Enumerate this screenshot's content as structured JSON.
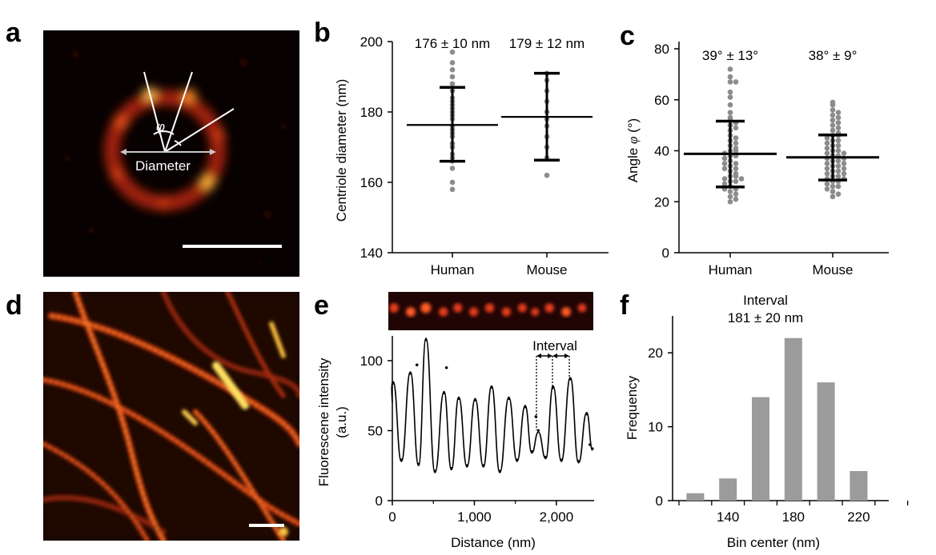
{
  "panels": {
    "a": {
      "letter": "a",
      "phi_label": "φ",
      "diameter_label": "Diameter"
    },
    "b": {
      "letter": "b",
      "stat_human": "176 ± 10 nm",
      "stat_mouse": "179 ± 12 nm",
      "ylabel": "Centriole diameter (nm)",
      "yticks": [
        "140",
        "160",
        "180",
        "200"
      ],
      "categories": [
        "Human",
        "Mouse"
      ]
    },
    "c": {
      "letter": "c",
      "stat_human": "39° ± 13°",
      "stat_mouse": "38° ± 9°",
      "ylabel_prefix": "Angle ",
      "ylabel_symbol": "φ",
      "ylabel_suffix": " (°)",
      "yticks": [
        "0",
        "20",
        "40",
        "60",
        "80"
      ],
      "categories": [
        "Human",
        "Mouse"
      ]
    },
    "d": {
      "letter": "d"
    },
    "e": {
      "letter": "e",
      "ylabel_line1": "Fluorescene intensity",
      "ylabel_line2": "(a.u.)",
      "xlabel": "Distance (nm)",
      "xticks": [
        "0",
        "1,000",
        "2,000"
      ],
      "yticks": [
        "0",
        "50",
        "100"
      ],
      "interval_label": "Interval"
    },
    "f": {
      "letter": "f",
      "title_line1": "Interval",
      "title_line2": "181 ± 20 nm",
      "ylabel": "Frequency",
      "xlabel": "Bin center (nm)",
      "xticks": [
        "140",
        "180",
        "220"
      ],
      "yticks": [
        "0",
        "10",
        "20"
      ]
    }
  },
  "chart_data": [
    {
      "panel": "b",
      "type": "scatter",
      "ylabel": "Centriole diameter (nm)",
      "ylim": [
        140,
        200
      ],
      "categories": [
        "Human",
        "Mouse"
      ],
      "series": [
        {
          "name": "Human",
          "values": [
            197,
            194,
            192,
            190,
            188,
            186,
            184,
            183,
            182,
            181,
            180,
            179,
            178,
            176,
            175,
            174,
            173,
            171,
            170,
            168,
            167,
            166,
            164,
            160,
            158
          ],
          "mean": 176,
          "sd": 10,
          "err_low": 166,
          "err_high": 187,
          "mean_line": 176.3
        },
        {
          "name": "Mouse",
          "values": [
            191,
            189,
            186,
            183,
            180,
            178,
            176,
            173,
            170,
            167,
            162
          ],
          "mean": 179,
          "sd": 12,
          "err_low": 166.3,
          "err_high": 191,
          "mean_line": 178.6
        }
      ]
    },
    {
      "panel": "c",
      "type": "scatter",
      "ylabel": "Angle φ (°)",
      "ylim": [
        0,
        80
      ],
      "categories": [
        "Human",
        "Mouse"
      ],
      "series": [
        {
          "name": "Human",
          "values": [
            72,
            69,
            67,
            67,
            63,
            61,
            58,
            55,
            53,
            52,
            51,
            50,
            49,
            48,
            46,
            45,
            44,
            43,
            42,
            41,
            40,
            40,
            39,
            38,
            38,
            37,
            36,
            35,
            35,
            34,
            33,
            33,
            32,
            31,
            30,
            30,
            29,
            29,
            28,
            28,
            27,
            26,
            25,
            25,
            24,
            23,
            22,
            21,
            20
          ],
          "mean": 39,
          "sd": 13,
          "err_low": 25.8,
          "err_high": 51.6,
          "mean_line": 38.8
        },
        {
          "name": "Mouse",
          "values": [
            59,
            58,
            56,
            55,
            54,
            53,
            52,
            51,
            50,
            49,
            48,
            47,
            46,
            46,
            45,
            44,
            44,
            43,
            42,
            42,
            41,
            40,
            40,
            39,
            39,
            38,
            38,
            37,
            37,
            36,
            36,
            35,
            35,
            34,
            34,
            33,
            33,
            32,
            32,
            31,
            31,
            30,
            30,
            29,
            29,
            28,
            28,
            27,
            26,
            26,
            25,
            24,
            23,
            22
          ],
          "mean": 38,
          "sd": 9,
          "err_low": 28.5,
          "err_high": 46.2,
          "mean_line": 37.4
        }
      ]
    },
    {
      "panel": "e",
      "type": "line",
      "xlabel": "Distance (nm)",
      "ylabel": "Fluorescene intensity (a.u.)",
      "xlim": [
        0,
        2450
      ],
      "ylim": [
        0,
        120
      ],
      "peaks": [
        {
          "x": 10,
          "y": 85
        },
        {
          "x": 220,
          "y": 92
        },
        {
          "x": 410,
          "y": 116
        },
        {
          "x": 630,
          "y": 78
        },
        {
          "x": 810,
          "y": 74
        },
        {
          "x": 1010,
          "y": 73
        },
        {
          "x": 1210,
          "y": 82
        },
        {
          "x": 1420,
          "y": 74
        },
        {
          "x": 1620,
          "y": 68
        },
        {
          "x": 1780,
          "y": 49
        },
        {
          "x": 1960,
          "y": 82
        },
        {
          "x": 2170,
          "y": 88
        },
        {
          "x": 2370,
          "y": 63
        }
      ],
      "troughs": [
        {
          "x": 110,
          "y": 28
        },
        {
          "x": 320,
          "y": 25
        },
        {
          "x": 520,
          "y": 20
        },
        {
          "x": 720,
          "y": 22
        },
        {
          "x": 910,
          "y": 24
        },
        {
          "x": 1110,
          "y": 24
        },
        {
          "x": 1310,
          "y": 20
        },
        {
          "x": 1520,
          "y": 28
        },
        {
          "x": 1700,
          "y": 34
        },
        {
          "x": 1870,
          "y": 30
        },
        {
          "x": 2060,
          "y": 28
        },
        {
          "x": 2270,
          "y": 27
        },
        {
          "x": 2440,
          "y": 36
        }
      ],
      "annotation": "Interval"
    },
    {
      "panel": "f",
      "type": "bar",
      "title": "Interval 181 ± 20 nm",
      "xlabel": "Bin center (nm)",
      "ylabel": "Frequency",
      "categories": [
        "120",
        "140",
        "160",
        "180",
        "200",
        "220"
      ],
      "values": [
        1,
        3,
        14,
        22,
        16,
        4
      ],
      "ylim": [
        0,
        25
      ]
    }
  ]
}
